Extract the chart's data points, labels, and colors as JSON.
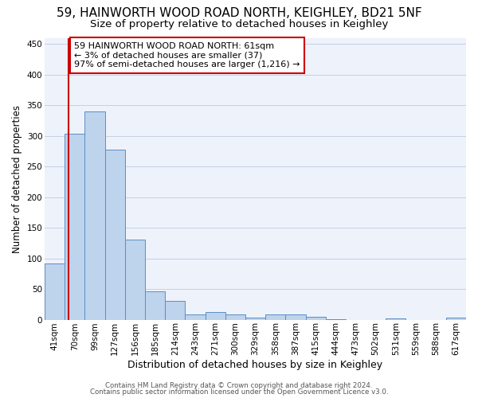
{
  "title": "59, HAINWORTH WOOD ROAD NORTH, KEIGHLEY, BD21 5NF",
  "subtitle": "Size of property relative to detached houses in Keighley",
  "xlabel": "Distribution of detached houses by size in Keighley",
  "ylabel": "Number of detached properties",
  "footer1": "Contains HM Land Registry data © Crown copyright and database right 2024.",
  "footer2": "Contains public sector information licensed under the Open Government Licence v3.0.",
  "annotation_line1": "59 HAINWORTH WOOD ROAD NORTH: 61sqm",
  "annotation_line2": "← 3% of detached houses are smaller (37)",
  "annotation_line3": "97% of semi-detached houses are larger (1,216) →",
  "bar_labels": [
    "41sqm",
    "70sqm",
    "99sqm",
    "127sqm",
    "156sqm",
    "185sqm",
    "214sqm",
    "243sqm",
    "271sqm",
    "300sqm",
    "329sqm",
    "358sqm",
    "387sqm",
    "415sqm",
    "444sqm",
    "473sqm",
    "502sqm",
    "531sqm",
    "559sqm",
    "588sqm",
    "617sqm"
  ],
  "bar_values": [
    92,
    303,
    340,
    278,
    130,
    46,
    30,
    9,
    13,
    9,
    3,
    8,
    9,
    4,
    1,
    0,
    0,
    2,
    0,
    0,
    3
  ],
  "bar_color": "#bed3ec",
  "bar_edge_color": "#5b8ec4",
  "ylim": [
    0,
    460
  ],
  "yticks": [
    0,
    50,
    100,
    150,
    200,
    250,
    300,
    350,
    400,
    450
  ],
  "background_color": "#eef2fb",
  "grid_color": "#c5cfe8",
  "red_line_color": "#cc0000",
  "title_fontsize": 11,
  "subtitle_fontsize": 9.5,
  "xlabel_fontsize": 9,
  "ylabel_fontsize": 8.5,
  "tick_fontsize": 7.5,
  "footer_fontsize": 6.2,
  "annotation_fontsize": 8
}
